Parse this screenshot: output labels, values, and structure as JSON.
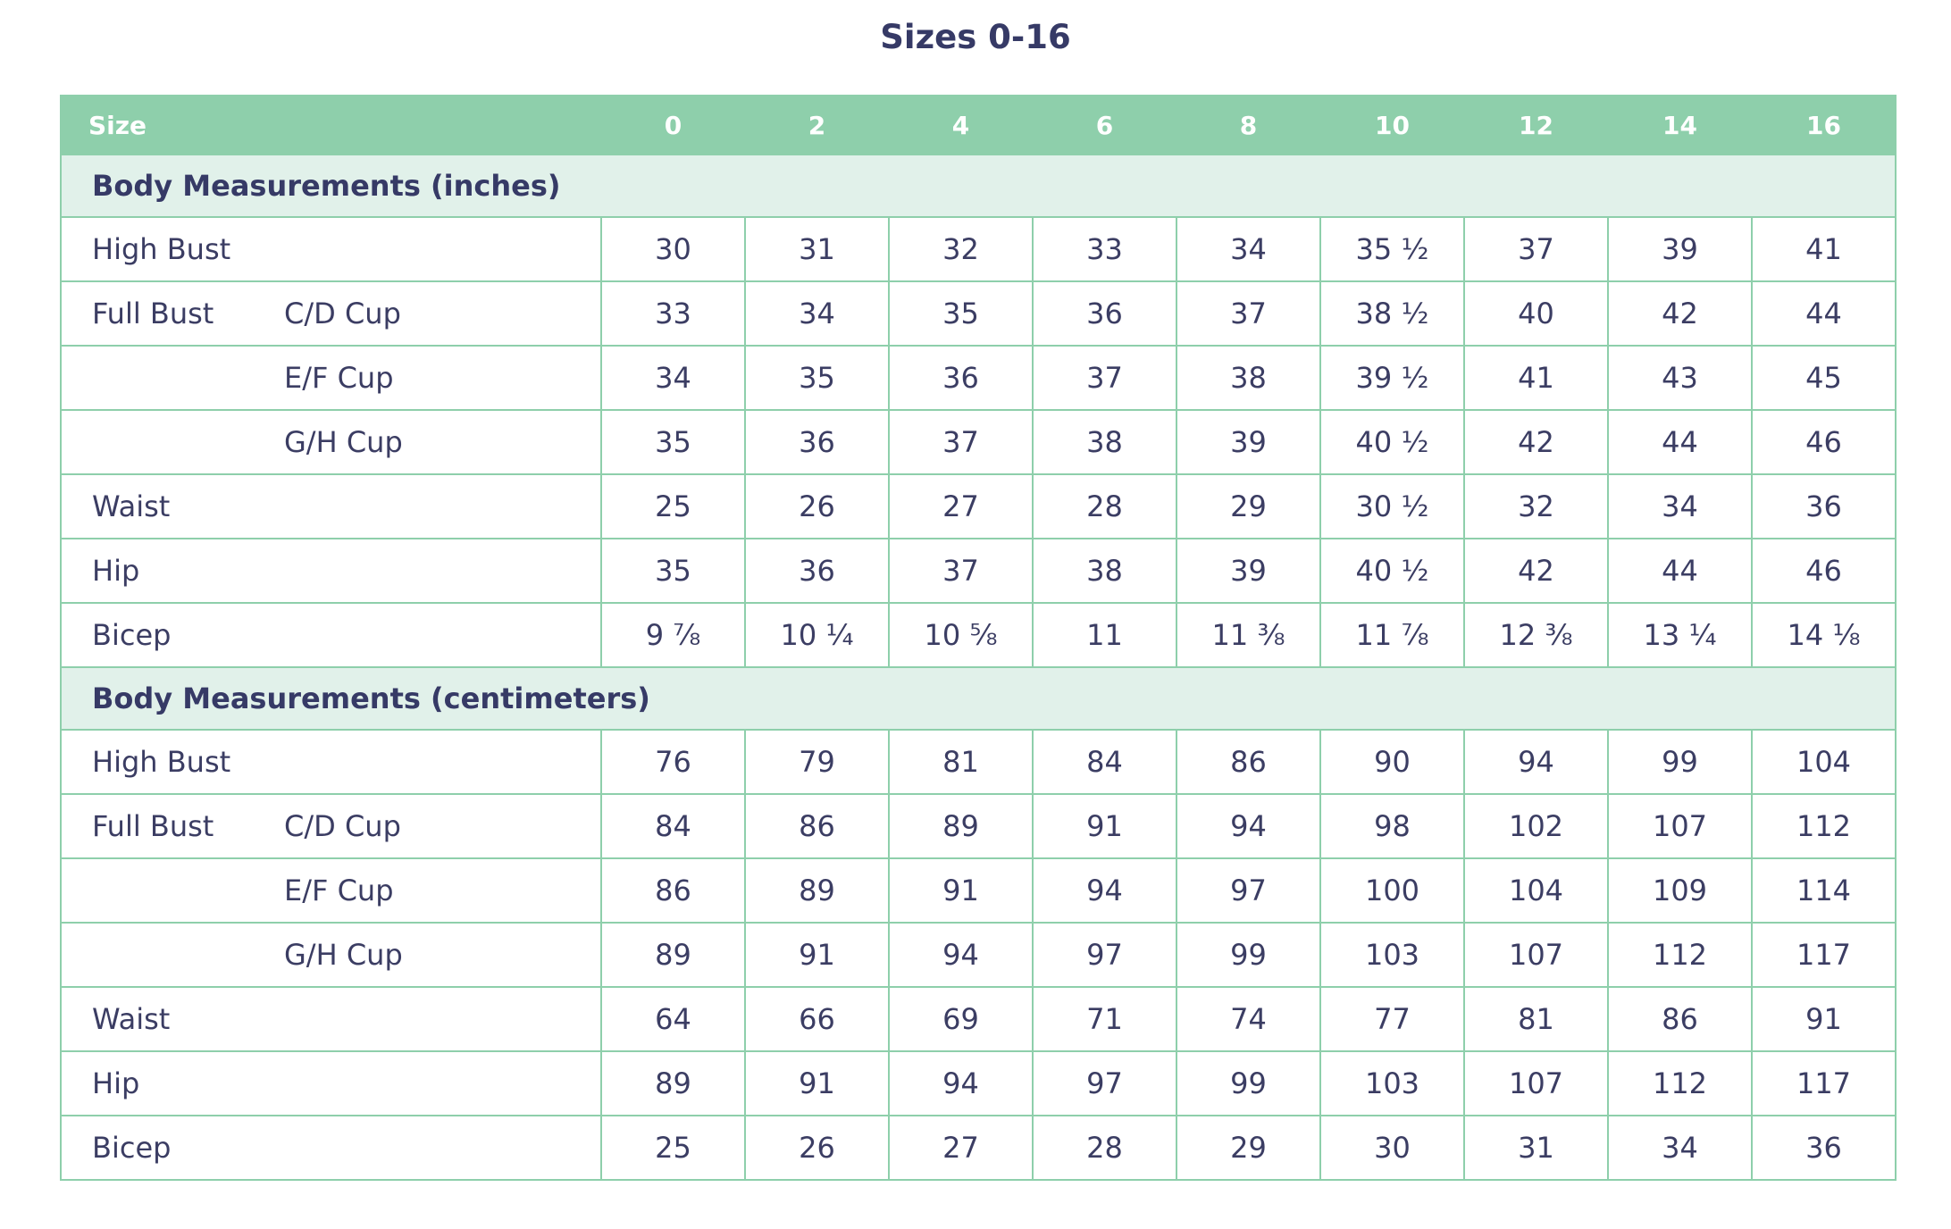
{
  "header": {
    "title": "Sizes 0-16"
  },
  "table": {
    "columns": [
      "Size",
      "0",
      "2",
      "4",
      "6",
      "8",
      "10",
      "12",
      "14",
      "16"
    ],
    "sections": [
      {
        "title": "Body Measurements (inches)",
        "rows": [
          {
            "label": "High Bust",
            "values": [
              30,
              31,
              32,
              33,
              34,
              "35 ½",
              37,
              39,
              41
            ]
          },
          {
            "label": "Full Bust",
            "sublabel": "C/D Cup",
            "values": [
              33,
              34,
              35,
              36,
              37,
              "38 ½",
              40,
              42,
              44
            ]
          },
          {
            "sublabel": "E/F Cup",
            "values": [
              34,
              35,
              36,
              37,
              38,
              "39 ½",
              41,
              43,
              45
            ]
          },
          {
            "sublabel": "G/H Cup",
            "values": [
              35,
              36,
              37,
              38,
              39,
              "40 ½",
              42,
              44,
              46
            ]
          },
          {
            "label": "Waist",
            "values": [
              25,
              26,
              27,
              28,
              29,
              "30 ½",
              32,
              34,
              36
            ]
          },
          {
            "label": "Hip",
            "values": [
              35,
              36,
              37,
              38,
              39,
              "40 ½",
              42,
              44,
              46
            ]
          },
          {
            "label": "Bicep",
            "values": [
              "9 ⅞",
              "10 ¼",
              "10 ⅝",
              11,
              "11 ⅜",
              "11 ⅞",
              "12 ⅜",
              "13 ¼",
              "14 ⅛"
            ]
          }
        ]
      },
      {
        "title": "Body Measurements (centimeters)",
        "rows": [
          {
            "label": "High Bust",
            "values": [
              76,
              79,
              81,
              84,
              86,
              90,
              94,
              99,
              104
            ]
          },
          {
            "label": "Full Bust",
            "sublabel": "C/D Cup",
            "values": [
              84,
              86,
              89,
              91,
              94,
              98,
              102,
              107,
              112
            ]
          },
          {
            "sublabel": "E/F Cup",
            "values": [
              86,
              89,
              91,
              94,
              97,
              100,
              104,
              109,
              114
            ]
          },
          {
            "sublabel": "G/H Cup",
            "values": [
              89,
              91,
              94,
              97,
              99,
              103,
              107,
              112,
              117
            ]
          },
          {
            "label": "Waist",
            "values": [
              64,
              66,
              69,
              71,
              74,
              77,
              81,
              86,
              91
            ]
          },
          {
            "label": "Hip",
            "values": [
              89,
              91,
              94,
              97,
              99,
              103,
              107,
              112,
              117
            ]
          },
          {
            "label": "Bicep",
            "values": [
              25,
              26,
              27,
              28,
              29,
              30,
              31,
              34,
              36
            ]
          }
        ]
      }
    ]
  }
}
